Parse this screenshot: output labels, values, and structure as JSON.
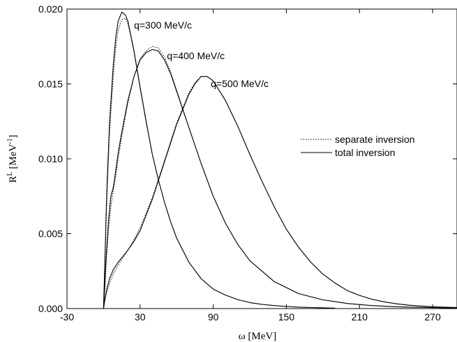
{
  "chart_data": {
    "type": "line",
    "xlabel": "ω [MeV]",
    "ylabel": "R",
    "ylabel_sup": "L",
    "ylabel_unit": " [MeV",
    "ylabel_unit_sup": "-1",
    "ylabel_close": "]",
    "xlim": [
      -30,
      290
    ],
    "ylim": [
      0,
      0.02
    ],
    "x_ticks": [
      -30,
      30,
      90,
      150,
      210,
      270
    ],
    "x_tick_labels": [
      "-30",
      "30",
      "90",
      "150",
      "210",
      "270"
    ],
    "y_ticks": [
      0,
      0.005,
      0.01,
      0.015,
      0.02
    ],
    "y_tick_labels": [
      "0.000",
      "0.005",
      "0.010",
      "0.015",
      "0.020"
    ],
    "grid": false,
    "legend_position": "right",
    "legend": [
      {
        "label": "separate inversion",
        "style": "dotted"
      },
      {
        "label": "total inversion",
        "style": "solid"
      }
    ],
    "annotations": [
      {
        "text": "q=300 MeV/c",
        "x": 25,
        "y": 0.0187
      },
      {
        "text": "q=400 MeV/c",
        "x": 52,
        "y": 0.01665
      },
      {
        "text": "q=500 MeV/c",
        "x": 88,
        "y": 0.0148
      }
    ],
    "series": [
      {
        "curve": "q=300 MeV/c",
        "style": "solid",
        "x": [
          0,
          0.5,
          1,
          2,
          3,
          5,
          8,
          10,
          12,
          15,
          18,
          20,
          22,
          25,
          30,
          35,
          40,
          45,
          50,
          55,
          60,
          70,
          80,
          90,
          100,
          110,
          120,
          130,
          140,
          150,
          160,
          170,
          180,
          190
        ],
        "y": [
          0,
          0.0015,
          0.003,
          0.006,
          0.0085,
          0.0125,
          0.0163,
          0.0181,
          0.0192,
          0.0198,
          0.0196,
          0.0192,
          0.0184,
          0.0172,
          0.0148,
          0.0125,
          0.0103,
          0.0086,
          0.0071,
          0.0058,
          0.0047,
          0.0031,
          0.002,
          0.0013,
          0.0009,
          0.0006,
          0.0004,
          0.00028,
          0.0002,
          0.00014,
          0.0001,
          7e-05,
          5e-05,
          3e-05
        ]
      },
      {
        "curve": "q=300 MeV/c",
        "style": "dotted",
        "x": [
          0,
          0.5,
          1,
          2,
          3,
          5,
          8,
          10,
          12,
          15,
          18,
          20,
          22,
          25,
          30,
          35,
          40,
          45,
          50,
          55,
          60,
          70,
          80,
          90,
          100,
          110,
          120,
          130,
          140,
          150,
          160,
          170,
          180,
          190
        ],
        "y": [
          0,
          0.0013,
          0.0027,
          0.0055,
          0.0078,
          0.0118,
          0.0155,
          0.0174,
          0.0186,
          0.0193,
          0.0194,
          0.019,
          0.0183,
          0.0171,
          0.0147,
          0.0124,
          0.0103,
          0.0086,
          0.0071,
          0.0058,
          0.0047,
          0.0031,
          0.002,
          0.0013,
          0.0009,
          0.0006,
          0.0004,
          0.00028,
          0.0002,
          0.00014,
          0.0001,
          7e-05,
          5e-05,
          3e-05
        ]
      },
      {
        "curve": "q=400 MeV/c",
        "style": "solid",
        "x": [
          0,
          1,
          2,
          4,
          6,
          8,
          10,
          12,
          15,
          20,
          25,
          30,
          35,
          40,
          45,
          50,
          55,
          60,
          70,
          80,
          90,
          100,
          110,
          120,
          140,
          160,
          180,
          200,
          220,
          240,
          260,
          280,
          290
        ],
        "y": [
          0,
          0.0015,
          0.0032,
          0.0058,
          0.0075,
          0.0081,
          0.0092,
          0.0104,
          0.0118,
          0.0139,
          0.0155,
          0.0166,
          0.0171,
          0.0173,
          0.0172,
          0.0166,
          0.0157,
          0.0145,
          0.0121,
          0.0097,
          0.0075,
          0.0057,
          0.0043,
          0.0032,
          0.0018,
          0.001,
          0.00058,
          0.00034,
          0.0002,
          0.00012,
          8e-05,
          5e-05,
          4e-05
        ]
      },
      {
        "curve": "q=400 MeV/c",
        "style": "dotted",
        "x": [
          0,
          1,
          2,
          4,
          6,
          8,
          10,
          12,
          15,
          20,
          25,
          30,
          35,
          40,
          45,
          50,
          55,
          60,
          70,
          80,
          90,
          100,
          110,
          120,
          140,
          160,
          180,
          200,
          220,
          240,
          260,
          280,
          290
        ],
        "y": [
          0,
          0.0013,
          0.0028,
          0.0052,
          0.0068,
          0.0079,
          0.0088,
          0.01,
          0.0115,
          0.0137,
          0.0155,
          0.0167,
          0.0172,
          0.0175,
          0.0174,
          0.0168,
          0.0158,
          0.0146,
          0.0121,
          0.0097,
          0.0075,
          0.0057,
          0.0043,
          0.0032,
          0.0018,
          0.001,
          0.00058,
          0.00034,
          0.0002,
          0.00012,
          8e-05,
          5e-05,
          4e-05
        ]
      },
      {
        "curve": "q=500 MeV/c",
        "style": "solid",
        "x": [
          0,
          1,
          3,
          5,
          8,
          12,
          16,
          20,
          25,
          30,
          40,
          50,
          60,
          70,
          75,
          80,
          85,
          90,
          100,
          110,
          120,
          130,
          140,
          150,
          160,
          170,
          180,
          190,
          200,
          210,
          220,
          230,
          240,
          250,
          260,
          270,
          280,
          290
        ],
        "y": [
          0,
          0.0006,
          0.0014,
          0.002,
          0.0026,
          0.0031,
          0.0035,
          0.0039,
          0.0045,
          0.0052,
          0.0073,
          0.0098,
          0.0123,
          0.0143,
          0.015,
          0.0155,
          0.0155,
          0.0152,
          0.0139,
          0.0122,
          0.0103,
          0.0085,
          0.0068,
          0.0053,
          0.0041,
          0.0031,
          0.0023,
          0.0017,
          0.0012,
          0.00088,
          0.00063,
          0.00045,
          0.00032,
          0.00023,
          0.00017,
          0.00012,
          9e-05,
          7e-05
        ]
      },
      {
        "curve": "q=500 MeV/c",
        "style": "dotted",
        "x": [
          0,
          1,
          3,
          5,
          8,
          12,
          16,
          20,
          25,
          30,
          40,
          50,
          60,
          70,
          75,
          80,
          85,
          90,
          100,
          110,
          120,
          130,
          140,
          150,
          160,
          170,
          180,
          190,
          200,
          210,
          220,
          230,
          240,
          250,
          260,
          270,
          280,
          290
        ],
        "y": [
          0,
          0.0005,
          0.0012,
          0.0017,
          0.0023,
          0.0029,
          0.0034,
          0.0039,
          0.0046,
          0.0054,
          0.0074,
          0.0099,
          0.0124,
          0.0144,
          0.0151,
          0.0155,
          0.0155,
          0.0152,
          0.0139,
          0.0122,
          0.0103,
          0.0085,
          0.0068,
          0.0053,
          0.0041,
          0.0031,
          0.0023,
          0.0017,
          0.0012,
          0.00088,
          0.00063,
          0.00045,
          0.00032,
          0.00023,
          0.00017,
          0.00012,
          9e-05,
          7e-05
        ]
      }
    ]
  }
}
